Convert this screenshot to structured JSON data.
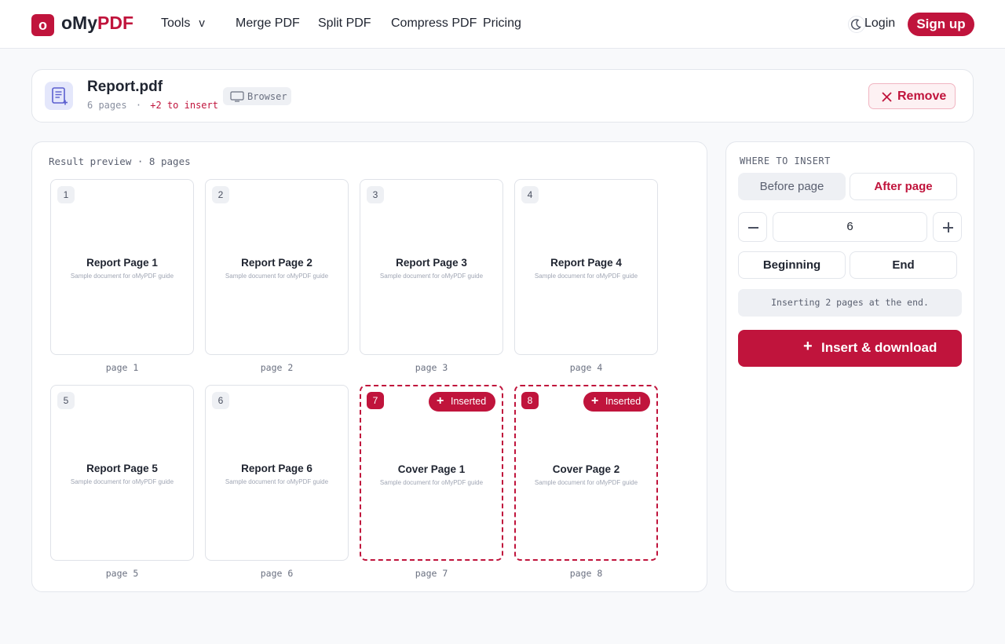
{
  "header": {
    "logo_letter": "o",
    "brand_part1": "oMy",
    "brand_part2": "PDF",
    "nav": {
      "tools": "Tools",
      "tools_chevron": "v",
      "merge": "Merge PDF",
      "split": "Split PDF",
      "compress": "Compress PDF",
      "pricing": "Pricing"
    },
    "login": "Login",
    "signup": "Sign up"
  },
  "file": {
    "name": "Report.pdf",
    "pages_text": "6 pages",
    "separator": "·",
    "insert_text": "+2 to insert",
    "source": "Browser",
    "remove_label": "Remove"
  },
  "preview": {
    "title": "Result preview · 8 pages",
    "pages": [
      {
        "num": "1",
        "title": "Report Page 1",
        "subtitle": "Sample document for oMyPDF guide",
        "label": "page 1",
        "inserted": false
      },
      {
        "num": "2",
        "title": "Report Page 2",
        "subtitle": "Sample document for oMyPDF guide",
        "label": "page 2",
        "inserted": false
      },
      {
        "num": "3",
        "title": "Report Page 3",
        "subtitle": "Sample document for oMyPDF guide",
        "label": "page 3",
        "inserted": false
      },
      {
        "num": "4",
        "title": "Report Page 4",
        "subtitle": "Sample document for oMyPDF guide",
        "label": "page 4",
        "inserted": false
      },
      {
        "num": "5",
        "title": "Report Page 5",
        "subtitle": "Sample document for oMyPDF guide",
        "label": "page 5",
        "inserted": false
      },
      {
        "num": "6",
        "title": "Report Page 6",
        "subtitle": "Sample document for oMyPDF guide",
        "label": "page 6",
        "inserted": false
      },
      {
        "num": "7",
        "title": "Cover Page 1",
        "subtitle": "Sample document for oMyPDF guide",
        "label": "page 7",
        "inserted": true,
        "badge": "Inserted"
      },
      {
        "num": "8",
        "title": "Cover Page 2",
        "subtitle": "Sample document for oMyPDF guide",
        "label": "page 8",
        "inserted": true,
        "badge": "Inserted"
      }
    ]
  },
  "insert_panel": {
    "title": "WHERE TO INSERT",
    "before_label": "Before page",
    "after_label": "After page",
    "selected_mode": "After page",
    "page_value": "6",
    "beginning_label": "Beginning",
    "end_label": "End",
    "info": "Inserting 2 pages at the end.",
    "action_icon": "+",
    "action_label": "Insert & download"
  },
  "colors": {
    "accent": "#c0143c",
    "background": "#f8f9fb",
    "muted_chip": "#eef0f4"
  },
  "icons": [
    "moon-icon",
    "document-add-icon",
    "monitor-icon",
    "close-icon",
    "minus-icon",
    "plus-icon"
  ]
}
